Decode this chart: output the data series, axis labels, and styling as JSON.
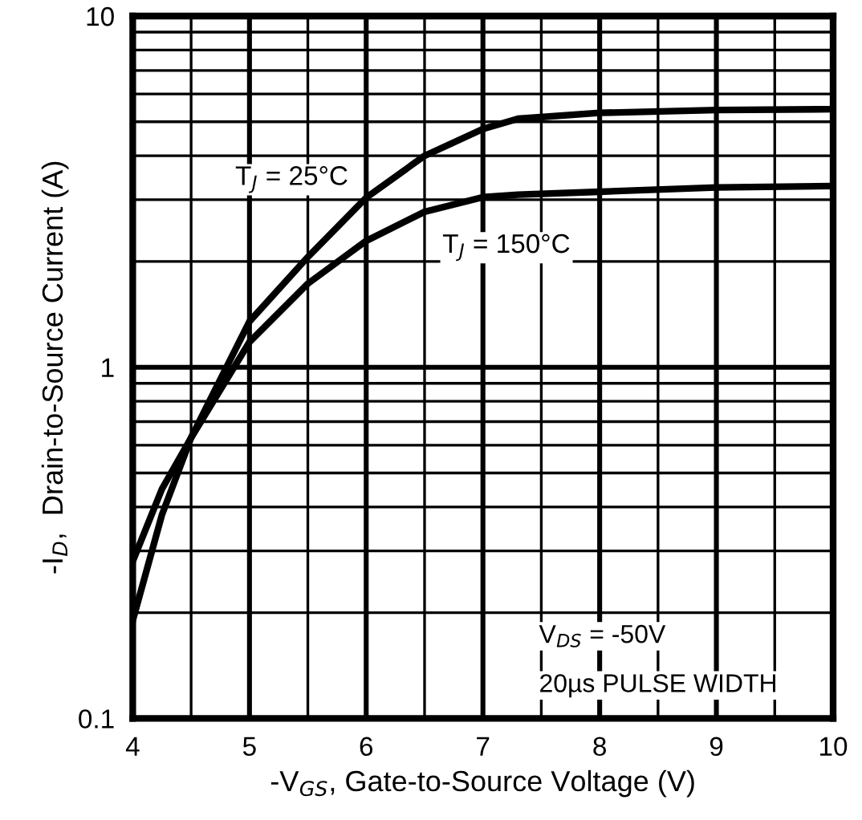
{
  "chart_data": {
    "type": "line",
    "xlabel": "-V$_{GS}$, Gate-to-Source Voltage (V)",
    "ylabel": "-I$_{D}$,  Drain-to-Source Current (A)",
    "log": "y",
    "xlim": [
      4,
      10
    ],
    "ylim": [
      0.1,
      10
    ],
    "xticks": [
      4,
      {
        "value": 4.5,
        "label": null
      },
      5,
      {
        "value": 5.5,
        "label": null
      },
      6,
      {
        "value": 6.5,
        "label": null
      },
      7,
      {
        "value": 7.5,
        "label": null
      },
      8,
      {
        "value": 8.5,
        "label": null
      },
      9,
      {
        "value": 9.5,
        "label": null
      },
      10
    ],
    "yticks": [
      0.1,
      {
        "value": 0.2,
        "label": null
      },
      {
        "value": 0.3,
        "label": null
      },
      {
        "value": 0.4,
        "label": null
      },
      {
        "value": 0.5,
        "label": null
      },
      {
        "value": 0.6,
        "label": null
      },
      {
        "value": 0.7,
        "label": null
      },
      {
        "value": 0.8,
        "label": null
      },
      {
        "value": 0.9,
        "label": null
      },
      1,
      {
        "value": 2,
        "label": null
      },
      {
        "value": 3,
        "label": null
      },
      {
        "value": 4,
        "label": null
      },
      {
        "value": 5,
        "label": null
      },
      {
        "value": 6,
        "label": null
      },
      {
        "value": 7,
        "label": null
      },
      {
        "value": 8,
        "label": null
      },
      {
        "value": 9,
        "label": null
      },
      10
    ],
    "grid": true,
    "legend": false,
    "marker": "none",
    "line_style": "solid",
    "x": [
      4,
      4.25,
      4.5,
      5,
      5.5,
      6,
      6.5,
      7,
      7.3,
      8,
      9,
      10
    ],
    "series": [
      {
        "name": "T$_{J}$ = 25°C",
        "color": "#000000",
        "values": [
          0.19,
          0.38,
          0.63,
          1.35,
          2.06,
          3.04,
          4.0,
          4.77,
          5.1,
          5.3,
          5.4,
          5.43
        ]
      },
      {
        "name": "T$_{J}$ = 150°C",
        "color": "#000000",
        "values": [
          0.28,
          0.45,
          0.63,
          1.18,
          1.73,
          2.29,
          2.77,
          3.05,
          3.1,
          3.16,
          3.25,
          3.28
        ]
      }
    ],
    "annotations": [
      "V$_{DS}$ = -50V",
      "20µs PULSE WIDTH"
    ]
  }
}
